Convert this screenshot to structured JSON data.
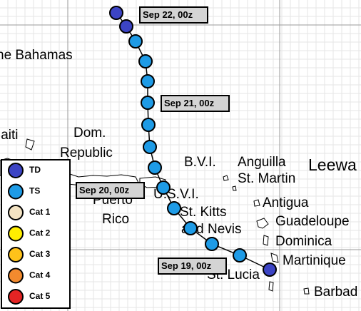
{
  "places": [
    "he Bahamas",
    "laiti",
    "Dom.",
    "Republic",
    "Puerto",
    "Rico",
    "B.V.I.",
    "U.S.V.I.",
    "Anguilla",
    "St. Martin",
    "Leewa",
    "Antigua",
    "St. Kitts",
    "and Nevis",
    "Guadeloupe",
    "Dominica",
    "Martinique",
    "St. Lucia",
    "Barbad"
  ],
  "date_labels": [
    "Sep 22, 00z",
    "Sep 21, 00z",
    "Sep 20, 00z",
    "Sep 19, 00z"
  ],
  "legend": [
    {
      "label": "TD",
      "color": "#3c44c4"
    },
    {
      "label": "TS",
      "color": "#1e9be6"
    },
    {
      "label": "Cat 1",
      "color": "#f3e3c3"
    },
    {
      "label": "Cat 2",
      "color": "#ffee00"
    },
    {
      "label": "Cat 3",
      "color": "#ffc21a"
    },
    {
      "label": "Cat 4",
      "color": "#f28a2e"
    },
    {
      "label": "Cat 5",
      "color": "#e42424"
    }
  ],
  "track": [
    "TD",
    "TS",
    "TS",
    "TS",
    "TS",
    "TS",
    "TS",
    "TS",
    "TS",
    "TS",
    "TS",
    "TS",
    "TS",
    "TD",
    "TD"
  ]
}
